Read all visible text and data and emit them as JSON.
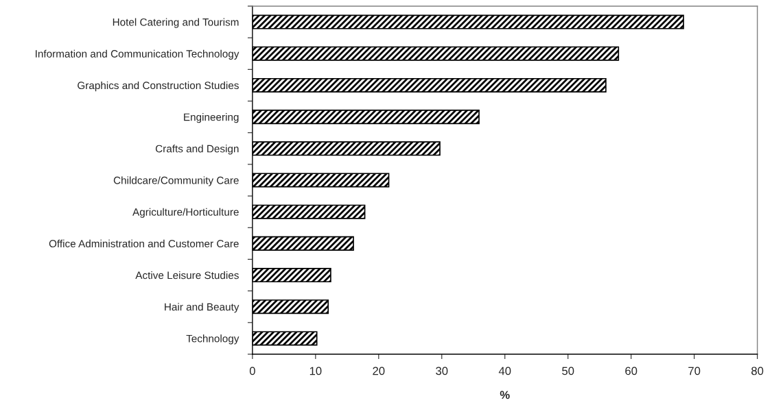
{
  "chart_data": {
    "type": "bar",
    "orientation": "horizontal",
    "xlabel": "%",
    "categories": [
      "Hotel Catering and Tourism",
      "Information and Communication Technology",
      "Graphics and Construction Studies",
      "Engineering",
      "Crafts and Design",
      "Childcare/Community Care",
      "Agriculture/Horticulture",
      "Office Administration and Customer Care",
      "Active Leisure Studies",
      "Hair and Beauty",
      "Technology"
    ],
    "values": [
      68.3,
      58.0,
      56.0,
      35.9,
      29.7,
      21.6,
      17.8,
      16.0,
      12.4,
      12.0,
      10.2
    ],
    "color": "#000000",
    "xlim": [
      0,
      80
    ],
    "xticks": [
      0,
      10,
      20,
      30,
      40,
      50,
      60,
      70,
      80
    ],
    "grid": false,
    "legend": false
  }
}
